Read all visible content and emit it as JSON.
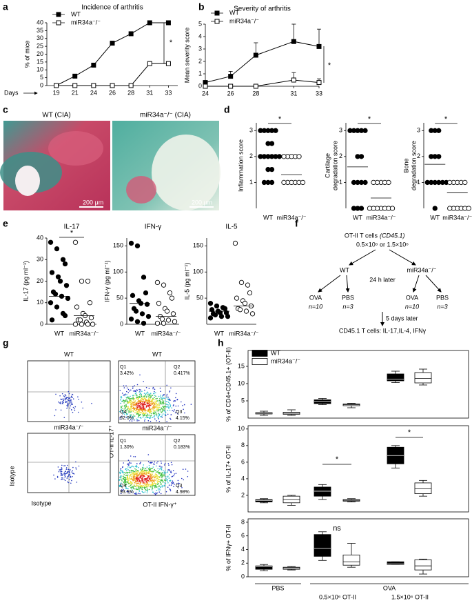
{
  "panel_labels": [
    "a",
    "b",
    "c",
    "d",
    "e",
    "f",
    "g",
    "h"
  ],
  "histology": {
    "captions": [
      "WT (CIA)",
      "miR34a⁻/⁻ (CIA)"
    ],
    "scale_bars": [
      "200 μm",
      "200 μm"
    ]
  },
  "diagram": {
    "source": "OT-II T cells",
    "source_marker": "(CD45.1)",
    "doses": "0.5×10⁶ or 1.5×10⁶",
    "strains": [
      "WT",
      "miR34a⁻/⁻"
    ],
    "delay1": "24 h later",
    "groups": [
      {
        "label": "OVA",
        "n": "n=10"
      },
      {
        "label": "PBS",
        "n": "n=3"
      },
      {
        "label": "OVA",
        "n": "n=10"
      },
      {
        "label": "PBS",
        "n": "n=3"
      }
    ],
    "delay2": "5 days later",
    "readout": "CD45.1 T cells: IL-17,IL-4, IFNγ"
  },
  "flow": {
    "left_titles": [
      "WT",
      "miR34a⁻/⁻"
    ],
    "right_titles": [
      "WT",
      "miR34a⁻/⁻"
    ],
    "left_ylabel": "Isotype",
    "left_xlabel": "Isotype",
    "right_ylabel": "OT-II IL-17⁺",
    "right_xlabel": "OT-II IFN-γ⁺",
    "quadrants": [
      [
        {
          "name": "Q1",
          "value": "3.42%"
        },
        {
          "name": "Q2",
          "value": "0.417%"
        },
        {
          "name": "Q4",
          "value": "92.0%"
        },
        {
          "name": "Q3",
          "value": "4.15%"
        }
      ],
      [
        {
          "name": "Q1",
          "value": "1.30%"
        },
        {
          "name": "Q2",
          "value": "0.183%"
        },
        {
          "name": "Q4",
          "value": "93.5%"
        },
        {
          "name": "Q3",
          "value": "4.98%"
        }
      ]
    ]
  },
  "chart_data": [
    {
      "type": "line",
      "title": "Incidence of arthritis",
      "ylabel": "% of mice",
      "xlabel": "Days",
      "categories": [
        "19",
        "21",
        "24",
        "26",
        "28",
        "31",
        "33"
      ],
      "ylim": [
        0,
        40
      ],
      "yticks": [
        0,
        5,
        10,
        15,
        20,
        25,
        30,
        35,
        40
      ],
      "legend": "top-left",
      "series": [
        {
          "name": "WT",
          "color": "#000000",
          "marker": "filled",
          "values": [
            0,
            6,
            13,
            27,
            33,
            40,
            40
          ]
        },
        {
          "name": "miR34a⁻/⁻",
          "color": "#000000",
          "marker": "open",
          "values": [
            0,
            0,
            0,
            0,
            0,
            14,
            14
          ]
        }
      ],
      "annotations": [
        "*"
      ]
    },
    {
      "type": "errorline",
      "title": "Severity of arthritis",
      "ylabel": "Mean severity score",
      "x": [
        24,
        26,
        28,
        31,
        33
      ],
      "xlim": [
        24,
        33
      ],
      "xticks": [
        24,
        26,
        28,
        31,
        33
      ],
      "ylim": [
        0,
        5
      ],
      "yticks": [
        0,
        1,
        2,
        3,
        4,
        5
      ],
      "legend": "top-left",
      "series": [
        {
          "name": "WT",
          "color": "#000000",
          "marker": "filled",
          "values": [
            0.3,
            0.8,
            2.5,
            3.6,
            3.2
          ],
          "errors": [
            0,
            0.4,
            1.0,
            1.4,
            1.4
          ]
        },
        {
          "name": "miR34a⁻/⁻",
          "color": "#000000",
          "marker": "open",
          "values": [
            0,
            0,
            0,
            0.5,
            0.3
          ],
          "errors": [
            0,
            0,
            0,
            0.6,
            0.3
          ]
        }
      ],
      "annotations": [
        "*"
      ]
    },
    {
      "type": "strip",
      "ylabel": "Inflammation score",
      "categories": [
        "WT",
        "miR34a⁻/⁻"
      ],
      "ylim": [
        0,
        3.3
      ],
      "yticks": [
        1,
        2,
        3
      ],
      "groups": [
        {
          "filled": true,
          "values": [
            3,
            3,
            3,
            3,
            3,
            2.5,
            2.5,
            2,
            2,
            2,
            2,
            2,
            2,
            1.5,
            1.5,
            1,
            1,
            1
          ],
          "center": 2
        },
        {
          "filled": false,
          "values": [
            2,
            2,
            2,
            2,
            2,
            1,
            1,
            1,
            1,
            1,
            1
          ],
          "center": 1.3
        }
      ],
      "annotations": [
        "*"
      ]
    },
    {
      "type": "strip",
      "ylabel": [
        "Cartilage",
        "degradation score"
      ],
      "categories": [
        "WT",
        "miR34a⁻/⁻"
      ],
      "ylim": [
        0,
        3.3
      ],
      "yticks": [
        1,
        2,
        3
      ],
      "groups": [
        {
          "filled": true,
          "values": [
            3,
            3,
            3,
            3,
            3,
            2,
            2,
            1,
            1,
            1,
            1,
            0,
            0,
            0
          ],
          "center": 1.6
        },
        {
          "filled": false,
          "values": [
            1,
            1,
            1,
            1,
            1,
            0,
            0,
            0,
            0,
            0,
            0,
            0
          ],
          "center": 0.4
        }
      ],
      "annotations": [
        "*"
      ]
    },
    {
      "type": "strip",
      "ylabel": [
        "Bone",
        "degradation score"
      ],
      "categories": [
        "WT",
        "miR34a⁻/⁻"
      ],
      "ylim": [
        0,
        3.3
      ],
      "yticks": [
        1,
        2,
        3
      ],
      "groups": [
        {
          "filled": true,
          "values": [
            3,
            3,
            3,
            2,
            2,
            2,
            1,
            1,
            1,
            1,
            1,
            1,
            0
          ],
          "center": 1.7
        },
        {
          "filled": false,
          "values": [
            1,
            1,
            1,
            1,
            1,
            0,
            0,
            0,
            0,
            0,
            0
          ],
          "center": 0.6
        }
      ],
      "annotations": [
        "*"
      ]
    },
    {
      "type": "strip",
      "title": "IL-17",
      "ylabel": "IL-17 (pg ml⁻¹)",
      "categories": [
        "WT",
        "miR34a⁻/⁻"
      ],
      "ylim": [
        0,
        40
      ],
      "yticks": [
        0,
        10,
        20,
        30,
        40
      ],
      "groups": [
        {
          "filled": true,
          "values": [
            38,
            35,
            30,
            28,
            24,
            22,
            20,
            18,
            15,
            14,
            13,
            12,
            10,
            8,
            5,
            4,
            2
          ],
          "center": 13
        },
        {
          "filled": false,
          "values": [
            38,
            20,
            20,
            10,
            8,
            5,
            4,
            3,
            2,
            2,
            1,
            0,
            0,
            0,
            0
          ],
          "center": 4
        }
      ],
      "annotations": [
        "*"
      ]
    },
    {
      "type": "strip",
      "title": "IFN-γ",
      "ylabel": "IFN-γ (pg ml⁻¹)",
      "categories": [
        "WT",
        "miR34a⁻/⁻"
      ],
      "ylim": [
        0,
        165
      ],
      "yticks": [
        0,
        50,
        100,
        150
      ],
      "groups": [
        {
          "filled": true,
          "values": [
            155,
            150,
            90,
            60,
            55,
            45,
            40,
            38,
            30,
            25,
            20,
            15,
            10,
            5,
            2
          ],
          "center": 40
        },
        {
          "filled": false,
          "values": [
            80,
            75,
            60,
            50,
            40,
            30,
            25,
            20,
            15,
            10,
            8,
            5,
            2,
            2
          ],
          "center": 15
        }
      ]
    },
    {
      "type": "strip",
      "title": "IL-5",
      "ylabel": "IL-5 (pg ml⁻¹)",
      "categories": [
        "WT",
        "miR34a⁻/⁻"
      ],
      "ylim": [
        0,
        165
      ],
      "yticks": [
        50,
        100,
        150
      ],
      "groups": [
        {
          "filled": true,
          "values": [
            40,
            35,
            32,
            30,
            28,
            25,
            22,
            22,
            20,
            18,
            15,
            15,
            12
          ],
          "center": 25
        },
        {
          "filled": false,
          "values": [
            155,
            80,
            75,
            60,
            50,
            45,
            40,
            35,
            30,
            28,
            25,
            20
          ],
          "center": 35
        }
      ]
    },
    {
      "type": "box",
      "frame": true,
      "ylabel": "% of CD4+CD45.1+ (OT-II)",
      "ylim": [
        0,
        19.6
      ],
      "yticks": [
        5,
        10,
        15
      ],
      "legend": "top-left",
      "series": [
        {
          "name": "WT",
          "color": "#000000",
          "boxes": [
            {
              "min": 0.8,
              "q1": 1.2,
              "median": 1.4,
              "q3": 1.6,
              "max": 2.0
            },
            {
              "min": 3.9,
              "q1": 4.2,
              "median": 4.9,
              "q3": 5.3,
              "max": 5.7
            },
            {
              "min": 10.3,
              "q1": 10.8,
              "median": 11.3,
              "q3": 12.8,
              "max": 13.6
            }
          ]
        },
        {
          "name": "miR34a⁻/⁻",
          "color": "#ffffff",
          "boxes": [
            {
              "min": 0.8,
              "q1": 1.1,
              "median": 1.4,
              "q3": 1.7,
              "max": 2.4
            },
            {
              "min": 3.0,
              "q1": 3.6,
              "median": 3.9,
              "q3": 4.1,
              "max": 4.3
            },
            {
              "min": 9.6,
              "q1": 10.2,
              "median": 11.5,
              "q3": 13.2,
              "max": 14.2
            }
          ]
        }
      ]
    },
    {
      "type": "box",
      "frame": true,
      "ylabel": "% of IL-17+ OT-II",
      "ylim": [
        0,
        10.4
      ],
      "yticks": [
        2,
        4,
        6,
        8,
        10
      ],
      "series": [
        {
          "color": "#000000",
          "boxes": [
            {
              "min": 1.1,
              "q1": 1.2,
              "median": 1.4,
              "q3": 1.5,
              "max": 1.6
            },
            {
              "min": 1.5,
              "q1": 1.9,
              "median": 2.5,
              "q3": 3.0,
              "max": 3.3
            },
            {
              "min": 5.3,
              "q1": 5.8,
              "median": 6.8,
              "q3": 7.8,
              "max": 8.0
            }
          ]
        },
        {
          "color": "#ffffff",
          "boxes": [
            {
              "min": 0.8,
              "q1": 1.1,
              "median": 1.5,
              "q3": 1.9,
              "max": 2.0
            },
            {
              "min": 1.2,
              "q1": 1.3,
              "median": 1.4,
              "q3": 1.5,
              "max": 1.6
            },
            {
              "min": 1.9,
              "q1": 2.2,
              "median": 2.8,
              "q3": 3.5,
              "max": 3.8
            }
          ]
        }
      ],
      "annotations": [
        "*",
        "*"
      ]
    },
    {
      "type": "box",
      "frame": true,
      "ylabel": "% of IFNγ+ OT-II",
      "ylim": [
        0,
        8.5
      ],
      "yticks": [
        0,
        2,
        4,
        6,
        8
      ],
      "series": [
        {
          "color": "#000000",
          "boxes": [
            {
              "min": 0.9,
              "q1": 1.1,
              "median": 1.5,
              "q3": 1.6,
              "max": 1.8
            },
            {
              "min": 2.4,
              "q1": 3.0,
              "median": 4.2,
              "q3": 6.2,
              "max": 6.6
            },
            {
              "min": 1.8,
              "q1": 1.8,
              "median": 1.9,
              "q3": 2.2,
              "max": 2.2
            }
          ]
        },
        {
          "color": "#ffffff",
          "boxes": [
            {
              "min": 1.0,
              "q1": 1.1,
              "median": 1.3,
              "q3": 1.4,
              "max": 1.5
            },
            {
              "min": 1.4,
              "q1": 1.7,
              "median": 2.2,
              "q3": 3.2,
              "max": 4.9
            },
            {
              "min": 0.4,
              "q1": 1.0,
              "median": 1.6,
              "q3": 2.5,
              "max": 2.6
            }
          ]
        }
      ],
      "annotations": [
        "ns"
      ],
      "xgroups": [
        "PBS",
        "OVA"
      ],
      "xsubgroups": [
        "0.5×10⁶ OT-II",
        "1.5×10⁶ OT-II"
      ]
    }
  ]
}
